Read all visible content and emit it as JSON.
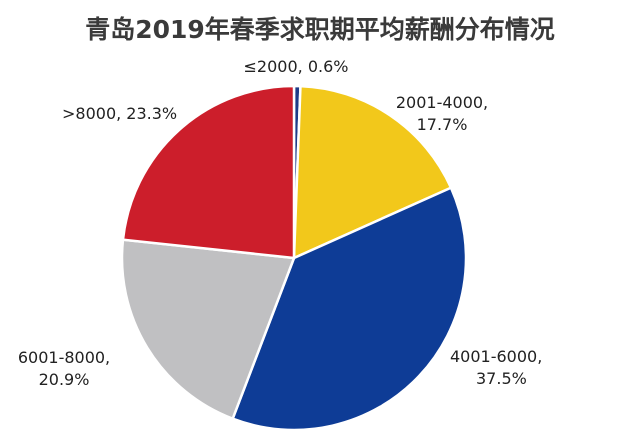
{
  "chart_data": {
    "type": "pie",
    "title": "青岛2019年春季求职期平均薪酬分布情况",
    "slices": [
      {
        "label": "≤2000",
        "value": 0.6,
        "display_line1": "≤2000, 0.6%",
        "display_line2": "",
        "color": "#1f3c88"
      },
      {
        "label": "2001-4000",
        "value": 17.7,
        "display_line1": "2001-4000,",
        "display_line2": "17.7%",
        "color": "#f2c81b"
      },
      {
        "label": "4001-6000",
        "value": 37.5,
        "display_line1": "4001-6000,",
        "display_line2": "37.5%",
        "color": "#0e3c96"
      },
      {
        "label": "6001-8000",
        "value": 20.9,
        "display_line1": "6001-8000,",
        "display_line2": "20.9%",
        "color": "#c0c0c2"
      },
      {
        "label": ">8000",
        "value": 23.3,
        "display_line1": ">8000, 23.3%",
        "display_line2": "",
        "color": "#cc1e2b"
      }
    ]
  }
}
